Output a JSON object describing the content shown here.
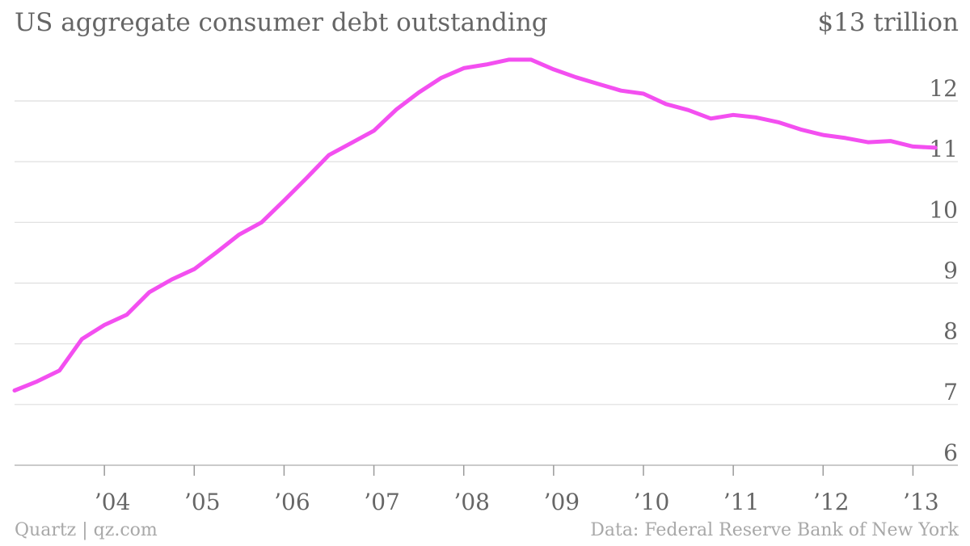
{
  "header": {
    "title": "US aggregate consumer debt outstanding",
    "unit_label": "$13 trillion"
  },
  "footer": {
    "credit": "Quartz | qz.com",
    "source": "Data: Federal Reserve Bank of New York"
  },
  "chart_data": {
    "type": "line",
    "title": "US aggregate consumer debt outstanding",
    "ylabel": "$ trillion",
    "ylim": [
      5.7,
      13
    ],
    "yticks": [
      6,
      7,
      8,
      9,
      10,
      11,
      12
    ],
    "ytick_labels": [
      "6",
      "7",
      "8",
      "9",
      "10",
      "11",
      "12"
    ],
    "xlim": [
      2003.0,
      2013.5
    ],
    "xticks": [
      2004,
      2005,
      2006,
      2007,
      2008,
      2009,
      2010,
      2011,
      2012,
      2013
    ],
    "xtick_labels": [
      "’04",
      "’05",
      "’06",
      "’07",
      "’08",
      "’09",
      "’10",
      "’11",
      "’12",
      "’13"
    ],
    "grid": true,
    "line_color": "#f34ff0",
    "series": [
      {
        "x": [
          2003.0,
          2003.25,
          2003.5,
          2003.75,
          2004.0,
          2004.25,
          2004.5,
          2004.75,
          2005.0,
          2005.25,
          2005.5,
          2005.75,
          2006.0,
          2006.25,
          2006.5,
          2006.75,
          2007.0,
          2007.25,
          2007.5,
          2007.75,
          2008.0,
          2008.25,
          2008.5,
          2008.75,
          2009.0,
          2009.25,
          2009.5,
          2009.75,
          2010.0,
          2010.25,
          2010.5,
          2010.75,
          2011.0,
          2011.25,
          2011.5,
          2011.75,
          2012.0,
          2012.25,
          2012.5,
          2012.75,
          2013.0,
          2013.25
        ],
        "values": [
          7.23,
          7.38,
          7.56,
          8.08,
          8.31,
          8.48,
          8.85,
          9.06,
          9.23,
          9.51,
          9.8,
          10.0,
          10.36,
          10.73,
          11.11,
          11.31,
          11.51,
          11.86,
          12.14,
          12.38,
          12.54,
          12.6,
          12.68,
          12.68,
          12.52,
          12.39,
          12.28,
          12.17,
          12.12,
          11.95,
          11.85,
          11.71,
          11.77,
          11.73,
          11.65,
          11.53,
          11.44,
          11.39,
          11.32,
          11.34,
          11.25,
          11.23
        ]
      }
    ]
  }
}
